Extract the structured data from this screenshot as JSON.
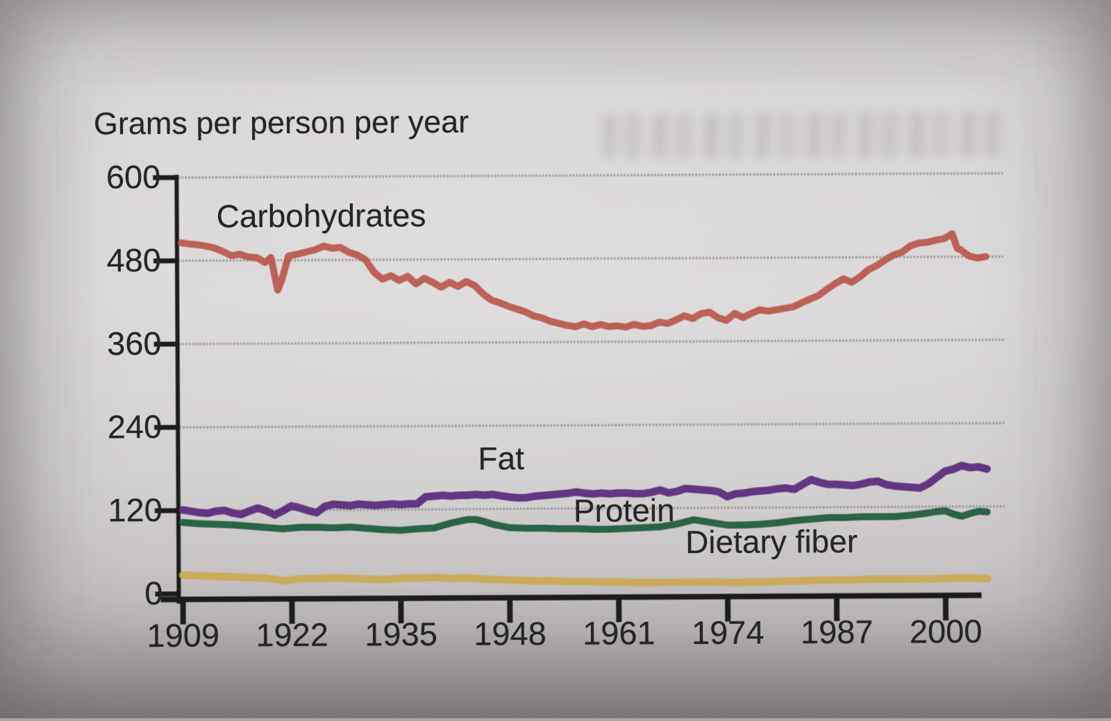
{
  "figure": {
    "title": "Grams per person per year",
    "paper_color": "#d6d3d4",
    "text_color": "#262626"
  },
  "chart_data": {
    "type": "line",
    "title": "Grams per person per year",
    "xlabel": "",
    "ylabel": "Grams per person per year",
    "x_ticks": [
      1909,
      1922,
      1935,
      1948,
      1961,
      1974,
      1987,
      2000
    ],
    "x_range": [
      1909,
      2005
    ],
    "y_ticks": [
      0,
      120,
      240,
      360,
      480,
      600
    ],
    "y_range": [
      0,
      600
    ],
    "grid": "horizontal gridlines at each y tick",
    "grid_color": "#6d6b6c",
    "axis_color": "#1c1c1c",
    "legend": "inline labels next to lines",
    "series": [
      {
        "label": "Carbohydrates",
        "color": "#b9584b",
        "points": [
          [
            1909,
            506
          ],
          [
            1910,
            504
          ],
          [
            1911,
            503
          ],
          [
            1912,
            501
          ],
          [
            1913,
            498
          ],
          [
            1914,
            493
          ],
          [
            1915,
            487
          ],
          [
            1916,
            489
          ],
          [
            1917,
            485
          ],
          [
            1918,
            484
          ],
          [
            1919,
            477
          ],
          [
            1919.7,
            484
          ],
          [
            1920.5,
            437
          ],
          [
            1921,
            452
          ],
          [
            1921.8,
            486
          ],
          [
            1923,
            489
          ],
          [
            1924,
            492
          ],
          [
            1925,
            495
          ],
          [
            1926,
            500
          ],
          [
            1927,
            497
          ],
          [
            1928,
            498
          ],
          [
            1929,
            491
          ],
          [
            1930,
            487
          ],
          [
            1931,
            480
          ],
          [
            1932,
            462
          ],
          [
            1933,
            452
          ],
          [
            1934,
            457
          ],
          [
            1935,
            450
          ],
          [
            1936,
            456
          ],
          [
            1937,
            445
          ],
          [
            1938,
            453
          ],
          [
            1939,
            447
          ],
          [
            1940,
            440
          ],
          [
            1941,
            447
          ],
          [
            1942,
            441
          ],
          [
            1943,
            448
          ],
          [
            1944,
            442
          ],
          [
            1945,
            430
          ],
          [
            1946,
            421
          ],
          [
            1947,
            417
          ],
          [
            1948,
            412
          ],
          [
            1949,
            408
          ],
          [
            1950,
            404
          ],
          [
            1951,
            398
          ],
          [
            1952,
            395
          ],
          [
            1953,
            390
          ],
          [
            1954,
            387
          ],
          [
            1955,
            384
          ],
          [
            1956,
            382
          ],
          [
            1957,
            386
          ],
          [
            1958,
            382
          ],
          [
            1959,
            385
          ],
          [
            1960,
            382
          ],
          [
            1961,
            383
          ],
          [
            1962,
            381
          ],
          [
            1963,
            385
          ],
          [
            1964,
            382
          ],
          [
            1965,
            383
          ],
          [
            1966,
            388
          ],
          [
            1967,
            386
          ],
          [
            1968,
            391
          ],
          [
            1969,
            397
          ],
          [
            1970,
            393
          ],
          [
            1971,
            400
          ],
          [
            1972,
            402
          ],
          [
            1973,
            394
          ],
          [
            1974,
            390
          ],
          [
            1975,
            400
          ],
          [
            1976,
            394
          ],
          [
            1977,
            400
          ],
          [
            1978,
            405
          ],
          [
            1979,
            403
          ],
          [
            1980,
            405
          ],
          [
            1981,
            407
          ],
          [
            1982,
            409
          ],
          [
            1983,
            415
          ],
          [
            1984,
            420
          ],
          [
            1985,
            425
          ],
          [
            1986,
            434
          ],
          [
            1987,
            442
          ],
          [
            1988,
            449
          ],
          [
            1989,
            444
          ],
          [
            1990,
            452
          ],
          [
            1991,
            462
          ],
          [
            1992,
            468
          ],
          [
            1993,
            476
          ],
          [
            1994,
            483
          ],
          [
            1995,
            487
          ],
          [
            1996,
            496
          ],
          [
            1997,
            500
          ],
          [
            1998,
            501
          ],
          [
            1999,
            504
          ],
          [
            2000,
            506
          ],
          [
            2001,
            513
          ],
          [
            2001.6,
            492
          ],
          [
            2002,
            490
          ],
          [
            2003,
            481
          ],
          [
            2004,
            478
          ],
          [
            2005,
            480
          ]
        ]
      },
      {
        "label": "Fat",
        "color": "#5a2a7c",
        "points": [
          [
            1909,
            121
          ],
          [
            1910,
            119
          ],
          [
            1911,
            117
          ],
          [
            1912,
            116
          ],
          [
            1913,
            119
          ],
          [
            1914,
            120
          ],
          [
            1915,
            116
          ],
          [
            1916,
            114
          ],
          [
            1917,
            119
          ],
          [
            1918,
            123
          ],
          [
            1919,
            119
          ],
          [
            1920,
            113
          ],
          [
            1921,
            119
          ],
          [
            1922,
            126
          ],
          [
            1923,
            123
          ],
          [
            1924,
            119
          ],
          [
            1925,
            116
          ],
          [
            1926,
            125
          ],
          [
            1927,
            128
          ],
          [
            1928,
            127
          ],
          [
            1929,
            126
          ],
          [
            1930,
            128
          ],
          [
            1931,
            127
          ],
          [
            1932,
            126
          ],
          [
            1933,
            127
          ],
          [
            1934,
            128
          ],
          [
            1935,
            127
          ],
          [
            1936,
            128
          ],
          [
            1937,
            128
          ],
          [
            1938,
            138
          ],
          [
            1939,
            139
          ],
          [
            1940,
            140
          ],
          [
            1941,
            139
          ],
          [
            1942,
            140
          ],
          [
            1943,
            140
          ],
          [
            1944,
            141
          ],
          [
            1945,
            140
          ],
          [
            1946,
            141
          ],
          [
            1947,
            139
          ],
          [
            1948,
            137
          ],
          [
            1949,
            136
          ],
          [
            1950,
            136
          ],
          [
            1951,
            138
          ],
          [
            1952,
            139
          ],
          [
            1953,
            140
          ],
          [
            1954,
            141
          ],
          [
            1955,
            142
          ],
          [
            1956,
            144
          ],
          [
            1957,
            142
          ],
          [
            1958,
            141
          ],
          [
            1959,
            142
          ],
          [
            1960,
            141
          ],
          [
            1961,
            142
          ],
          [
            1962,
            142
          ],
          [
            1963,
            141
          ],
          [
            1964,
            141
          ],
          [
            1965,
            143
          ],
          [
            1966,
            146
          ],
          [
            1967,
            142
          ],
          [
            1968,
            144
          ],
          [
            1969,
            148
          ],
          [
            1970,
            147
          ],
          [
            1971,
            146
          ],
          [
            1972,
            145
          ],
          [
            1973,
            143
          ],
          [
            1974,
            136
          ],
          [
            1975,
            140
          ],
          [
            1976,
            141
          ],
          [
            1977,
            143
          ],
          [
            1978,
            144
          ],
          [
            1979,
            145
          ],
          [
            1980,
            147
          ],
          [
            1981,
            148
          ],
          [
            1982,
            146
          ],
          [
            1983,
            153
          ],
          [
            1984,
            160
          ],
          [
            1985,
            156
          ],
          [
            1986,
            153
          ],
          [
            1987,
            153
          ],
          [
            1988,
            152
          ],
          [
            1989,
            151
          ],
          [
            1990,
            153
          ],
          [
            1991,
            156
          ],
          [
            1992,
            157
          ],
          [
            1993,
            152
          ],
          [
            1994,
            150
          ],
          [
            1995,
            149
          ],
          [
            1996,
            148
          ],
          [
            1997,
            147
          ],
          [
            1998,
            153
          ],
          [
            1999,
            162
          ],
          [
            2000,
            171
          ],
          [
            2001,
            174
          ],
          [
            2002,
            179
          ],
          [
            2003,
            176
          ],
          [
            2004,
            177
          ],
          [
            2005,
            174
          ]
        ]
      },
      {
        "label": "Protein",
        "color": "#1d5b3c",
        "points": [
          [
            1909,
            103
          ],
          [
            1911,
            101
          ],
          [
            1913,
            100
          ],
          [
            1915,
            99
          ],
          [
            1917,
            97
          ],
          [
            1919,
            95
          ],
          [
            1921,
            93
          ],
          [
            1923,
            95
          ],
          [
            1925,
            95
          ],
          [
            1927,
            94
          ],
          [
            1929,
            95
          ],
          [
            1931,
            93
          ],
          [
            1933,
            91
          ],
          [
            1935,
            90
          ],
          [
            1937,
            92
          ],
          [
            1939,
            93
          ],
          [
            1941,
            100
          ],
          [
            1943,
            105
          ],
          [
            1944,
            105
          ],
          [
            1945,
            102
          ],
          [
            1946,
            98
          ],
          [
            1948,
            93
          ],
          [
            1950,
            92
          ],
          [
            1952,
            92
          ],
          [
            1954,
            91
          ],
          [
            1956,
            91
          ],
          [
            1958,
            90
          ],
          [
            1960,
            90
          ],
          [
            1962,
            91
          ],
          [
            1964,
            92
          ],
          [
            1966,
            93
          ],
          [
            1968,
            97
          ],
          [
            1970,
            103
          ],
          [
            1972,
            99
          ],
          [
            1974,
            95
          ],
          [
            1976,
            95
          ],
          [
            1978,
            96
          ],
          [
            1980,
            98
          ],
          [
            1982,
            101
          ],
          [
            1984,
            103
          ],
          [
            1986,
            105
          ],
          [
            1988,
            105
          ],
          [
            1990,
            106
          ],
          [
            1992,
            106
          ],
          [
            1994,
            106
          ],
          [
            1996,
            108
          ],
          [
            1998,
            111
          ],
          [
            1999,
            113
          ],
          [
            2000,
            114
          ],
          [
            2001,
            109
          ],
          [
            2002,
            106
          ],
          [
            2003,
            110
          ],
          [
            2004,
            113
          ],
          [
            2005,
            112
          ]
        ]
      },
      {
        "label": "Dietary fiber",
        "color": "#ccaa55",
        "points": [
          [
            1909,
            27
          ],
          [
            1911,
            26
          ],
          [
            1913,
            25
          ],
          [
            1915,
            24
          ],
          [
            1917,
            23
          ],
          [
            1919,
            22
          ],
          [
            1921,
            18
          ],
          [
            1923,
            21
          ],
          [
            1925,
            21
          ],
          [
            1927,
            22
          ],
          [
            1929,
            21
          ],
          [
            1931,
            20
          ],
          [
            1933,
            19
          ],
          [
            1935,
            21
          ],
          [
            1937,
            21
          ],
          [
            1939,
            22
          ],
          [
            1941,
            20
          ],
          [
            1943,
            21
          ],
          [
            1945,
            19
          ],
          [
            1947,
            18
          ],
          [
            1949,
            17
          ],
          [
            1951,
            16
          ],
          [
            1953,
            16
          ],
          [
            1955,
            15
          ],
          [
            1957,
            15
          ],
          [
            1959,
            14
          ],
          [
            1961,
            14
          ],
          [
            1963,
            13
          ],
          [
            1965,
            13
          ],
          [
            1967,
            13
          ],
          [
            1969,
            13
          ],
          [
            1971,
            13
          ],
          [
            1973,
            13
          ],
          [
            1975,
            12
          ],
          [
            1977,
            13
          ],
          [
            1979,
            13
          ],
          [
            1981,
            14
          ],
          [
            1983,
            14
          ],
          [
            1985,
            15
          ],
          [
            1987,
            15
          ],
          [
            1989,
            15
          ],
          [
            1991,
            16
          ],
          [
            1993,
            16
          ],
          [
            1995,
            16
          ],
          [
            1997,
            16
          ],
          [
            1999,
            16
          ],
          [
            2001,
            17
          ],
          [
            2003,
            17
          ],
          [
            2005,
            16
          ]
        ]
      }
    ]
  }
}
